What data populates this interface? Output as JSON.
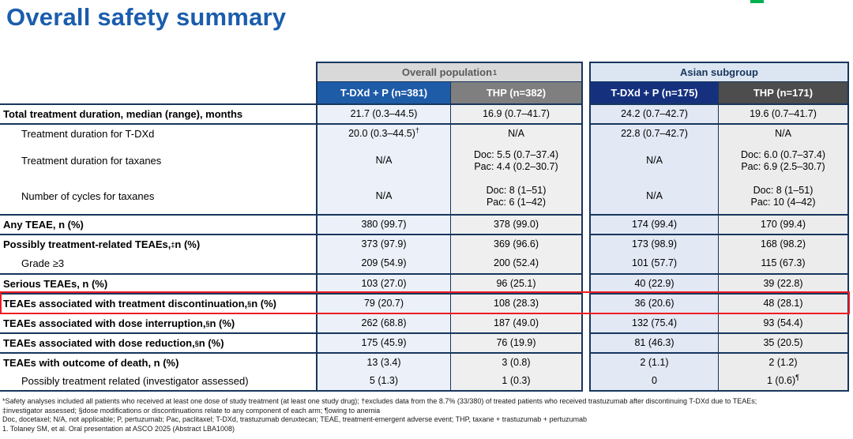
{
  "slide": {
    "title": "Overall safety summary",
    "title_color": "#1A5DAD",
    "logo_fragment_color": "#00B04D"
  },
  "table": {
    "group_headers": [
      {
        "label": "Overall population",
        "sup": "1",
        "bg": "#D9D9D9",
        "text_color": "#595959"
      },
      {
        "label": "Asian subgroup",
        "sup": "",
        "bg": "#DCE6F2",
        "text_color": "#17365D"
      }
    ],
    "col_headers": [
      {
        "label": "T-DXd + P (n=381)",
        "bg": "#1E5CA8"
      },
      {
        "label": "THP (n=382)",
        "bg": "#7F7F7F"
      },
      {
        "label": "T-DXd + P (n=175)",
        "bg": "#15317E"
      },
      {
        "label": "THP (n=171)",
        "bg": "#4D4D4D"
      }
    ],
    "border_color": "#17365D",
    "highlight_color": "#EE1C25",
    "rows": [
      {
        "label": "Total treatment duration, median (range), months",
        "bold": true,
        "indent": false,
        "rule": true,
        "highlight": false,
        "cells": [
          [
            "21.7 (0.3–44.5)"
          ],
          [
            "16.9 (0.7–41.7)"
          ],
          [
            "24.2 (0.7–42.7)"
          ],
          [
            "19.6 (0.7–41.7)"
          ]
        ]
      },
      {
        "label": "Treatment duration for T-DXd",
        "bold": false,
        "indent": true,
        "rule": true,
        "highlight": false,
        "cells": [
          [
            "20.0 (0.3–44.5)^†^"
          ],
          [
            "N/A"
          ],
          [
            "22.8 (0.7–42.7)"
          ],
          [
            "N/A"
          ]
        ]
      },
      {
        "label": "Treatment duration for taxanes",
        "bold": false,
        "indent": true,
        "rule": false,
        "highlight": false,
        "cells": [
          [
            "N/A"
          ],
          [
            "Doc: 5.5 (0.7–37.4)",
            "Pac: 4.4 (0.2–30.7)"
          ],
          [
            "N/A"
          ],
          [
            "Doc: 6.0 (0.7–37.4)",
            "Pac: 6.9 (2.5–30.7)"
          ]
        ]
      },
      {
        "label": "Number of cycles for taxanes",
        "bold": false,
        "indent": true,
        "rule": false,
        "highlight": false,
        "cells": [
          [
            "N/A"
          ],
          [
            "Doc: 8 (1–51)",
            "Pac: 6 (1–42)"
          ],
          [
            "N/A"
          ],
          [
            "Doc: 8 (1–51)",
            "Pac: 10 (4–42)"
          ]
        ]
      },
      {
        "label": "Any TEAE, n (%)",
        "bold": true,
        "indent": false,
        "rule": true,
        "highlight": false,
        "cells": [
          [
            "380 (99.7)"
          ],
          [
            "378 (99.0)"
          ],
          [
            "174 (99.4)"
          ],
          [
            "170 (99.4)"
          ]
        ]
      },
      {
        "label": "Possibly treatment-related TEAEs,^‡^ n (%)",
        "bold": true,
        "indent": false,
        "rule": true,
        "highlight": false,
        "cells": [
          [
            "373 (97.9)"
          ],
          [
            "369 (96.6)"
          ],
          [
            "173 (98.9)"
          ],
          [
            "168 (98.2)"
          ]
        ]
      },
      {
        "label": "Grade ≥3",
        "bold": false,
        "indent": true,
        "rule": false,
        "highlight": false,
        "cells": [
          [
            "209 (54.9)"
          ],
          [
            "200 (52.4)"
          ],
          [
            "101 (57.7)"
          ],
          [
            "115 (67.3)"
          ]
        ]
      },
      {
        "label": "Serious TEAEs, n (%)",
        "bold": true,
        "indent": false,
        "rule": true,
        "highlight": false,
        "cells": [
          [
            "103 (27.0)"
          ],
          [
            "96 (25.1)"
          ],
          [
            "40 (22.9)"
          ],
          [
            "39 (22.8)"
          ]
        ]
      },
      {
        "label": "TEAEs associated with treatment discontinuation,^§^ n (%)",
        "bold": true,
        "indent": false,
        "rule": true,
        "highlight": true,
        "cells": [
          [
            "79 (20.7)"
          ],
          [
            "108 (28.3)"
          ],
          [
            "36 (20.6)"
          ],
          [
            "48 (28.1)"
          ]
        ]
      },
      {
        "label": "TEAEs associated with dose interruption,^§^ n (%)",
        "bold": true,
        "indent": false,
        "rule": true,
        "highlight": false,
        "cells": [
          [
            "262 (68.8)"
          ],
          [
            "187 (49.0)"
          ],
          [
            "132 (75.4)"
          ],
          [
            "93 (54.4)"
          ]
        ]
      },
      {
        "label": "TEAEs associated with dose reduction,^§^ n (%)",
        "bold": true,
        "indent": false,
        "rule": true,
        "highlight": false,
        "cells": [
          [
            "175 (45.9)"
          ],
          [
            "76 (19.9)"
          ],
          [
            "81 (46.3)"
          ],
          [
            "35 (20.5)"
          ]
        ]
      },
      {
        "label": "TEAEs with outcome of death, n (%)",
        "bold": true,
        "indent": false,
        "rule": true,
        "highlight": false,
        "cells": [
          [
            "13 (3.4)"
          ],
          [
            "3 (0.8)"
          ],
          [
            "2 (1.1)"
          ],
          [
            "2 (1.2)"
          ]
        ]
      },
      {
        "label": "Possibly treatment related (investigator assessed)",
        "bold": false,
        "indent": true,
        "rule": false,
        "highlight": false,
        "cells": [
          [
            "5 (1.3)"
          ],
          [
            "1 (0.3)"
          ],
          [
            "0"
          ],
          [
            "1 (0.6)^¶^"
          ]
        ]
      }
    ]
  },
  "footnotes": [
    "*Safety analyses included all patients who received at least one dose of study treatment (at least one study drug); †excludes data from the 8.7% (33/380) of treated patients who received trastuzumab after discontinuing T-DXd due to TEAEs;",
    "‡investigator assessed; §dose modifications or discontinuations relate to any component of each arm; ¶owing to anemia",
    "Doc, docetaxel; N/A, not applicable; P, pertuzumab; Pac, paclitaxel; T-DXd, trastuzumab deruxtecan; TEAE, treatment-emergent adverse event; THP, taxane + trastuzumab + pertuzumab",
    "1. Tolaney SM, et al. Oral presentation at ASCO 2025 (Abstract LBA1008)"
  ]
}
